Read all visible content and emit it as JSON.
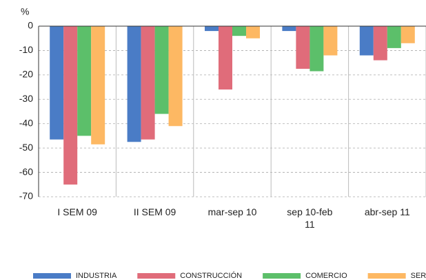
{
  "chart_data": {
    "type": "bar",
    "y_unit": "%",
    "categories": [
      "I SEM 09",
      "II SEM 09",
      "mar-sep 10",
      "sep 10-feb 11",
      "abr-sep 11"
    ],
    "series": [
      {
        "name": "INDUSTRIA",
        "color": "#4a7cc6",
        "values": [
          -46.5,
          -47.5,
          -2,
          -2,
          -12
        ]
      },
      {
        "name": "CONSTRUCCIÓN",
        "color": "#e06c7a",
        "values": [
          -65,
          -46.5,
          -26,
          -17.5,
          -14
        ]
      },
      {
        "name": "COMERCIO",
        "color": "#5cbf6a",
        "values": [
          -45,
          -36,
          -4,
          -18.5,
          -9
        ]
      },
      {
        "name": "SERVICIOS",
        "color": "#fdb863",
        "values": [
          -48.5,
          -41,
          -5,
          -12,
          -7
        ]
      }
    ],
    "ylim": [
      -70,
      0
    ],
    "yticks": [
      0,
      -10,
      -20,
      -30,
      -40,
      -50,
      -60,
      -70
    ],
    "grid": true
  }
}
